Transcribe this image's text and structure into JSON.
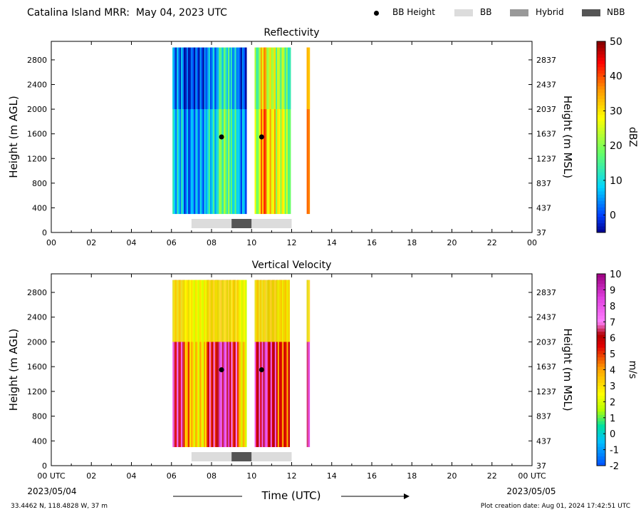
{
  "header": {
    "title": "Catalina Island MRR:  May 04, 2023 UTC"
  },
  "legend": [
    {
      "label": "BB Height",
      "kind": "dot",
      "color": "#000000"
    },
    {
      "label": "BB",
      "kind": "swatch",
      "color": "#dcdcdc"
    },
    {
      "label": "Hybrid",
      "kind": "swatch",
      "color": "#999999"
    },
    {
      "label": "NBB",
      "kind": "swatch",
      "color": "#555555"
    }
  ],
  "footer": {
    "location": "33.4462 N, 118.4828 W, 37 m",
    "created": "Plot creation date: Aug 01, 2024 17:42:51 UTC"
  },
  "chart_data": [
    {
      "type": "heatmap",
      "title": "Reflectivity",
      "xlabel": "",
      "ylabel": "Height (m AGL)",
      "ylabel_right": "Height (m MSL)",
      "xlim": [
        0,
        24
      ],
      "ylim": [
        0,
        3100
      ],
      "x_ticks": [
        "00",
        "02",
        "04",
        "06",
        "08",
        "10",
        "12",
        "14",
        "16",
        "18",
        "20",
        "22",
        "00"
      ],
      "y_ticks": [
        0,
        400,
        800,
        1200,
        1600,
        2000,
        2400,
        2800
      ],
      "y_ticks_right": [
        "37",
        "437",
        "837",
        "1237",
        "1637",
        "2037",
        "2437",
        "2837"
      ],
      "data_extent_height": [
        300,
        3000
      ],
      "colorbar": {
        "label": "dBZ",
        "min": -5,
        "max": 50,
        "ticks": [
          0,
          10,
          20,
          30,
          40,
          50
        ]
      },
      "bright_band_heights": [
        {
          "time": 8.5,
          "height": 1550
        },
        {
          "time": 10.5,
          "height": 1550
        }
      ],
      "bb_classification": [
        {
          "start": 7.0,
          "end": 9.0,
          "class": "BB"
        },
        {
          "start": 9.0,
          "end": 10.0,
          "class": "NBB"
        },
        {
          "start": 10.0,
          "end": 12.0,
          "class": "BB"
        }
      ],
      "echo_columns": [
        {
          "start": 6.05,
          "end": 6.55,
          "value": 8
        },
        {
          "start": 6.55,
          "end": 7.05,
          "value": 3
        },
        {
          "start": 7.05,
          "end": 7.7,
          "value": 5
        },
        {
          "start": 7.7,
          "end": 8.3,
          "value": 10
        },
        {
          "start": 8.3,
          "end": 8.9,
          "value": 18
        },
        {
          "start": 8.9,
          "end": 9.3,
          "value": 12
        },
        {
          "start": 9.3,
          "end": 9.75,
          "value": 5
        },
        {
          "start": 10.15,
          "end": 10.45,
          "value": 22
        },
        {
          "start": 10.45,
          "end": 10.75,
          "value": 38
        },
        {
          "start": 10.75,
          "end": 11.2,
          "value": 30
        },
        {
          "start": 11.2,
          "end": 11.65,
          "value": 26
        },
        {
          "start": 11.65,
          "end": 11.95,
          "value": 20
        },
        {
          "start": 12.75,
          "end": 12.9,
          "value": 35
        }
      ]
    },
    {
      "type": "heatmap",
      "title": "Vertical Velocity",
      "xlabel": "Time (UTC)",
      "ylabel": "Height (m AGL)",
      "ylabel_right": "Height (m MSL)",
      "xlim": [
        0,
        24
      ],
      "ylim": [
        0,
        3100
      ],
      "x_ticks": [
        "00 UTC",
        "02",
        "04",
        "06",
        "08",
        "10",
        "12",
        "14",
        "16",
        "18",
        "20",
        "22",
        "00 UTC"
      ],
      "x_date_start": "2023/05/04",
      "x_date_end": "2023/05/05",
      "y_ticks": [
        0,
        400,
        800,
        1200,
        1600,
        2000,
        2400,
        2800
      ],
      "y_ticks_right": [
        "37",
        "437",
        "837",
        "1237",
        "1637",
        "2037",
        "2437",
        "2837"
      ],
      "data_extent_height": [
        300,
        3000
      ],
      "colorbar": {
        "label": "m/s",
        "min": -2,
        "max": 10,
        "ticks": [
          -2,
          -1,
          0,
          1,
          2,
          3,
          4,
          5,
          6,
          7,
          8,
          9,
          10
        ]
      },
      "bright_band_heights": [
        {
          "time": 8.5,
          "height": 1550
        },
        {
          "time": 10.5,
          "height": 1550
        }
      ],
      "bb_classification": [
        {
          "start": 7.0,
          "end": 9.0,
          "class": "BB"
        },
        {
          "start": 9.0,
          "end": 10.0,
          "class": "NBB"
        },
        {
          "start": 10.0,
          "end": 12.0,
          "class": "BB"
        }
      ],
      "echo_columns": [
        {
          "start": 6.05,
          "end": 6.6,
          "value": 6.5
        },
        {
          "start": 6.6,
          "end": 7.05,
          "value": 4
        },
        {
          "start": 7.05,
          "end": 7.75,
          "value": 3
        },
        {
          "start": 7.75,
          "end": 8.3,
          "value": 6
        },
        {
          "start": 8.3,
          "end": 8.9,
          "value": 7.5
        },
        {
          "start": 8.9,
          "end": 9.35,
          "value": 6
        },
        {
          "start": 9.35,
          "end": 9.75,
          "value": 3
        },
        {
          "start": 10.15,
          "end": 10.5,
          "value": 6.5
        },
        {
          "start": 10.5,
          "end": 10.8,
          "value": 7.5
        },
        {
          "start": 10.8,
          "end": 11.3,
          "value": 6.5
        },
        {
          "start": 11.3,
          "end": 11.9,
          "value": 5
        },
        {
          "start": 12.75,
          "end": 12.9,
          "value": 7
        }
      ]
    }
  ]
}
